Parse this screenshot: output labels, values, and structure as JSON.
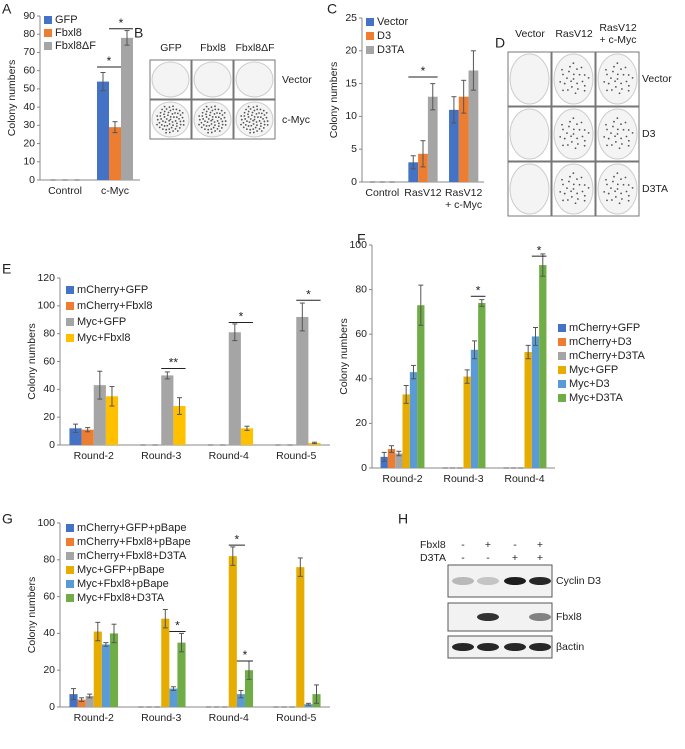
{
  "chart_data": [
    {
      "type": "bar",
      "panel": "A",
      "y_label": "Colony numbers",
      "categories": [
        "Control",
        "c-Myc"
      ],
      "ylim": [
        0,
        90
      ],
      "yticks": [
        0,
        10,
        20,
        30,
        40,
        50,
        60,
        70,
        80,
        90
      ],
      "legend": "upper left",
      "series": [
        {
          "name": "GFP",
          "color": "#4472c4",
          "values": [
            0,
            54
          ],
          "errors": [
            0,
            5
          ]
        },
        {
          "name": "Fbxl8",
          "color": "#ed7d31",
          "values": [
            0,
            29
          ],
          "errors": [
            0,
            3
          ]
        },
        {
          "name": "Fbxl8ΔF",
          "color": "#a5a5a5",
          "values": [
            0,
            78
          ],
          "errors": [
            0,
            4
          ]
        }
      ],
      "annotations": [
        {
          "text": "*"
        },
        {
          "text": "*"
        }
      ]
    },
    {
      "type": "bar",
      "panel": "C",
      "y_label": "Colony numbers",
      "categories": [
        "Control",
        "RasV12",
        "RasV12 + c-Myc"
      ],
      "ylim": [
        0,
        25
      ],
      "yticks": [
        0,
        5,
        10,
        15,
        20,
        25
      ],
      "legend": "upper left",
      "series": [
        {
          "name": "Vector",
          "color": "#4472c4",
          "values": [
            0,
            3,
            11
          ],
          "errors": [
            0,
            1,
            2
          ]
        },
        {
          "name": "D3",
          "color": "#ed7d31",
          "values": [
            0,
            4.3,
            13
          ],
          "errors": [
            0,
            2,
            2.5
          ]
        },
        {
          "name": "D3TA",
          "color": "#a5a5a5",
          "values": [
            0,
            13,
            17
          ],
          "errors": [
            0,
            2,
            3
          ]
        }
      ],
      "annotations": [
        {
          "text": "*"
        }
      ]
    },
    {
      "type": "bar",
      "panel": "E",
      "y_label": "Colony numbers",
      "categories": [
        "Round-2",
        "Round-3",
        "Round-4",
        "Round-5"
      ],
      "ylim": [
        0,
        120
      ],
      "yticks": [
        0,
        20,
        40,
        60,
        80,
        100,
        120
      ],
      "legend": "upper left",
      "series": [
        {
          "name": "mCherry+GFP",
          "color": "#4472c4",
          "values": [
            12,
            0,
            0,
            0
          ],
          "errors": [
            3,
            0,
            0,
            0
          ]
        },
        {
          "name": "mCherry+Fbxl8",
          "color": "#ed7d31",
          "values": [
            11,
            0,
            0,
            0
          ],
          "errors": [
            1.5,
            0,
            0,
            0
          ]
        },
        {
          "name": "Myc+GFP",
          "color": "#a5a5a5",
          "values": [
            43,
            50,
            81,
            92
          ],
          "errors": [
            10,
            2.5,
            6,
            10
          ]
        },
        {
          "name": "Myc+Fbxl8",
          "color": "#ffc000",
          "values": [
            35,
            28,
            12,
            1.5
          ],
          "errors": [
            7,
            6,
            1.5,
            0.5
          ]
        }
      ],
      "annotations": [
        {
          "text": "**"
        },
        {
          "text": "*"
        },
        {
          "text": "*"
        }
      ]
    },
    {
      "type": "bar",
      "panel": "F",
      "y_label": "Colony numbers",
      "categories": [
        "Round-2",
        "Round-3",
        "Round-4"
      ],
      "ylim": [
        0,
        100
      ],
      "yticks": [
        0,
        20,
        40,
        60,
        80,
        100
      ],
      "legend": "right",
      "series": [
        {
          "name": "mCherry+GFP",
          "color": "#4472c4",
          "values": [
            5,
            0,
            0
          ],
          "errors": [
            2,
            0,
            0
          ]
        },
        {
          "name": "mCherry+D3",
          "color": "#ed7d31",
          "values": [
            8.5,
            0,
            0
          ],
          "errors": [
            1.5,
            0,
            0
          ]
        },
        {
          "name": "mCherry+D3TA",
          "color": "#a5a5a5",
          "values": [
            6.5,
            0,
            0
          ],
          "errors": [
            1,
            0,
            0
          ]
        },
        {
          "name": "Myc+GFP",
          "color": "#e6ac00",
          "values": [
            33,
            41,
            52
          ],
          "errors": [
            4,
            3,
            3
          ]
        },
        {
          "name": "Myc+D3",
          "color": "#5b9bd5",
          "values": [
            43,
            53,
            59
          ],
          "errors": [
            3,
            4,
            4
          ]
        },
        {
          "name": "Myc+D3TA",
          "color": "#70ad47",
          "values": [
            73,
            74,
            91
          ],
          "errors": [
            9,
            1.5,
            5
          ]
        }
      ],
      "annotations": [
        {
          "text": "*"
        },
        {
          "text": "*"
        }
      ]
    },
    {
      "type": "bar",
      "panel": "G",
      "y_label": "Colony numbers",
      "categories": [
        "Round-2",
        "Round-3",
        "Round-4",
        "Round-5"
      ],
      "ylim": [
        0,
        100
      ],
      "yticks": [
        0,
        20,
        40,
        60,
        80,
        100
      ],
      "legend": "upper left",
      "series": [
        {
          "name": "mCherry+GFP+pBape",
          "color": "#4472c4",
          "values": [
            7,
            0,
            0,
            0
          ],
          "errors": [
            3,
            0,
            0,
            0
          ]
        },
        {
          "name": "mCherry+Fbxl8+pBape",
          "color": "#ed7d31",
          "values": [
            4,
            0,
            0,
            0
          ],
          "errors": [
            1,
            0,
            0,
            0
          ]
        },
        {
          "name": "mCherry+Fbxl8+D3TA",
          "color": "#a5a5a5",
          "values": [
            6,
            0,
            0,
            0
          ],
          "errors": [
            1,
            0,
            0,
            0
          ]
        },
        {
          "name": "Myc+GFP+pBape",
          "color": "#e6ac00",
          "values": [
            41,
            48,
            82,
            76
          ],
          "errors": [
            5,
            5,
            5,
            5
          ]
        },
        {
          "name": "Myc+Fbxl8+pBape",
          "color": "#5b9bd5",
          "values": [
            34,
            10,
            7,
            1.5
          ],
          "errors": [
            1,
            1,
            2,
            0.5
          ]
        },
        {
          "name": "Myc+Fbxl8+D3TA",
          "color": "#70ad47",
          "values": [
            40,
            35,
            20,
            7
          ],
          "errors": [
            5,
            5,
            5,
            5
          ]
        }
      ],
      "annotations": [
        {
          "text": "*"
        },
        {
          "text": "*"
        },
        {
          "text": "*"
        }
      ]
    }
  ],
  "image_panels": [
    {
      "panel": "B",
      "columns": [
        "GFP",
        "Fbxl8",
        "Fbxl8ΔF"
      ],
      "rows": [
        "Vector",
        "c-Myc"
      ]
    },
    {
      "panel": "D",
      "columns": [
        "Vector",
        "RasV12",
        "RasV12 + c-Myc"
      ],
      "rows": [
        "Vector",
        "D3",
        "D3TA"
      ]
    },
    {
      "panel": "H",
      "conditions": [
        {
          "name": "Fbxl8",
          "signs": [
            "-",
            "+",
            "-",
            "+"
          ]
        },
        {
          "name": "D3TA",
          "signs": [
            "-",
            "-",
            "+",
            "+"
          ]
        }
      ],
      "rows": [
        "Cyclin D3",
        "Fbxl8",
        "βactin"
      ]
    }
  ]
}
